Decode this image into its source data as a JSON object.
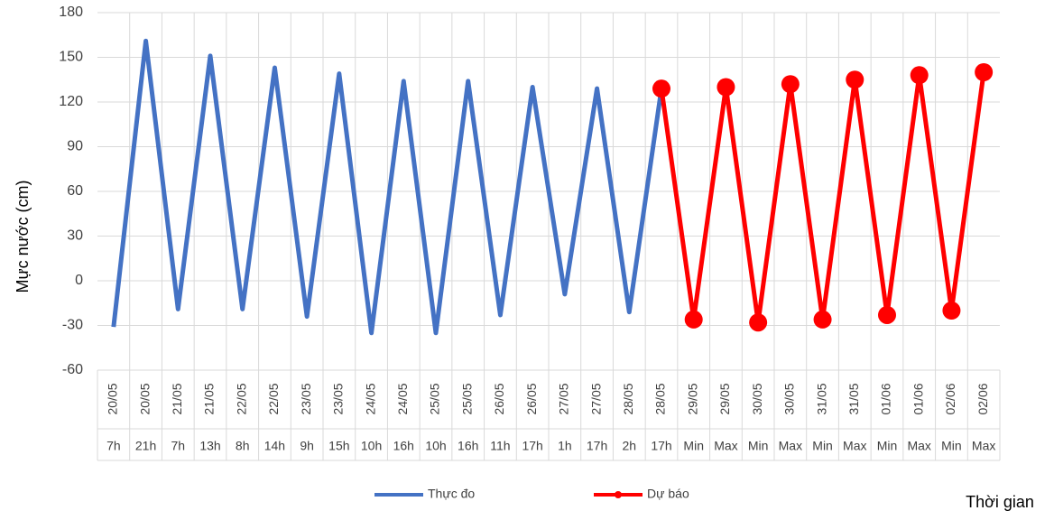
{
  "chart_data": {
    "type": "line",
    "y_label": "Mực nước (cm)",
    "x_label": "Thời gian",
    "categories": [
      "20/05",
      "20/05",
      "21/05",
      "21/05",
      "22/05",
      "22/05",
      "23/05",
      "23/05",
      "24/05",
      "24/05",
      "25/05",
      "25/05",
      "26/05",
      "26/05",
      "27/05",
      "27/05",
      "28/05",
      "28/05",
      "29/05",
      "29/05",
      "30/05",
      "30/05",
      "31/05",
      "31/05",
      "01/06",
      "01/06",
      "02/06",
      "02/06"
    ],
    "subcategories": [
      "7h",
      "21h",
      "7h",
      "13h",
      "8h",
      "14h",
      "9h",
      "15h",
      "10h",
      "16h",
      "10h",
      "16h",
      "11h",
      "17h",
      "1h",
      "17h",
      "2h",
      "17h",
      "Min",
      "Max",
      "Min",
      "Max",
      "Min",
      "Max",
      "Min",
      "Max",
      "Min",
      "Max"
    ],
    "series": [
      {
        "name": "Thực đo",
        "color": "#4472c4",
        "marker": false,
        "values": [
          -31,
          161,
          -19,
          151,
          -19,
          143,
          -24,
          139,
          -35,
          134,
          -35,
          134,
          -23,
          130,
          -9,
          129,
          -21,
          129,
          null,
          null,
          null,
          null,
          null,
          null,
          null,
          null,
          null,
          null
        ]
      },
      {
        "name": "Dự báo",
        "color": "#ff0000",
        "marker": true,
        "values": [
          null,
          null,
          null,
          null,
          null,
          null,
          null,
          null,
          null,
          null,
          null,
          null,
          null,
          null,
          null,
          null,
          null,
          129,
          -26,
          130,
          -28,
          132,
          -26,
          135,
          -23,
          138,
          -20,
          140
        ]
      }
    ],
    "ylim": [
      -60,
      180
    ],
    "yticks": [
      -60,
      -30,
      0,
      30,
      60,
      90,
      120,
      150,
      180
    ],
    "grid": true
  }
}
